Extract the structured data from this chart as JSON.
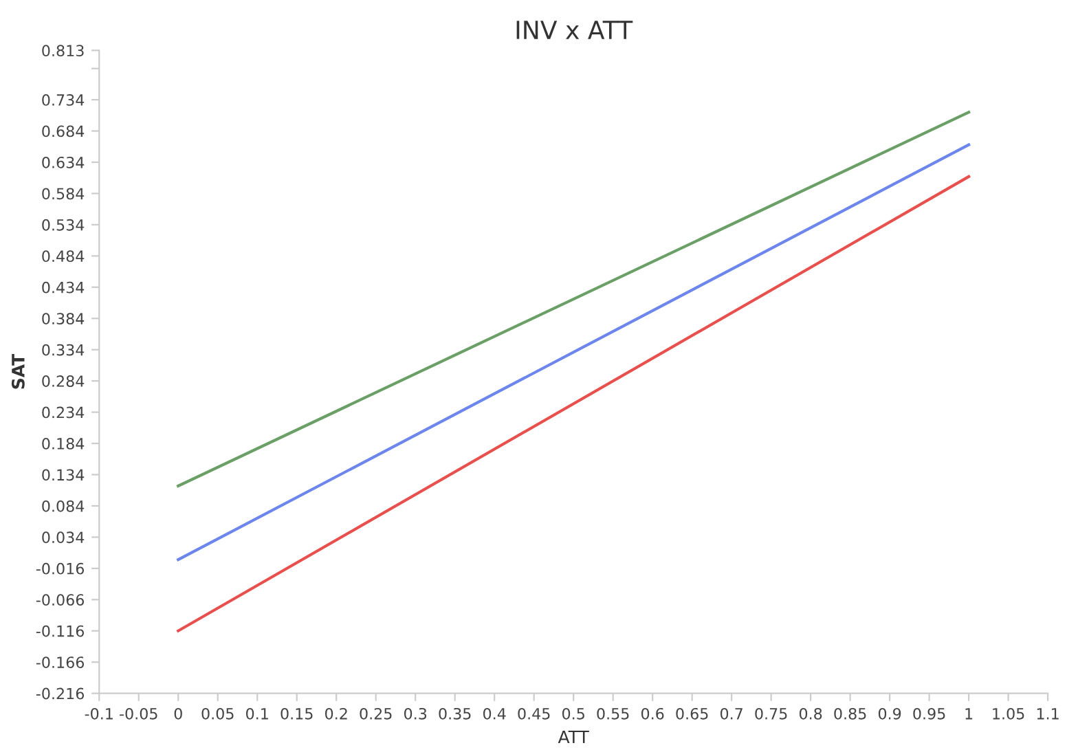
{
  "chart_data": {
    "type": "line",
    "title": "INV x ATT",
    "xlabel": "ATT",
    "ylabel": "SAT",
    "series": [
      {
        "color": "#6a9f66",
        "values": [
          0.116,
          0.714
        ]
      },
      {
        "color": "#6d86ec",
        "values": [
          -0.002,
          0.662
        ]
      },
      {
        "color": "#e8504d",
        "values": [
          -0.116,
          0.611
        ]
      }
    ],
    "x": [
      0,
      1
    ],
    "xlim": [
      -0.1,
      1.1
    ],
    "xticks": [
      -0.1,
      -0.05,
      0,
      0.05,
      0.1,
      0.15,
      0.2,
      0.25,
      0.3,
      0.35,
      0.4,
      0.45,
      0.5,
      0.55,
      0.6,
      0.65,
      0.7,
      0.75,
      0.8,
      0.85,
      0.9,
      0.95,
      1,
      1.05,
      1.1
    ],
    "ylim": [
      -0.216,
      0.813
    ],
    "yticks": [
      -0.216,
      -0.166,
      -0.116,
      -0.066,
      -0.016,
      0.034,
      0.084,
      0.134,
      0.184,
      0.234,
      0.284,
      0.334,
      0.384,
      0.434,
      0.484,
      0.534,
      0.584,
      0.634,
      0.684,
      0.734,
      {
        "value": 0.784,
        "label": null
      },
      0.813
    ],
    "grid": false,
    "legend": false,
    "marker": "none",
    "line_style": "solid"
  }
}
